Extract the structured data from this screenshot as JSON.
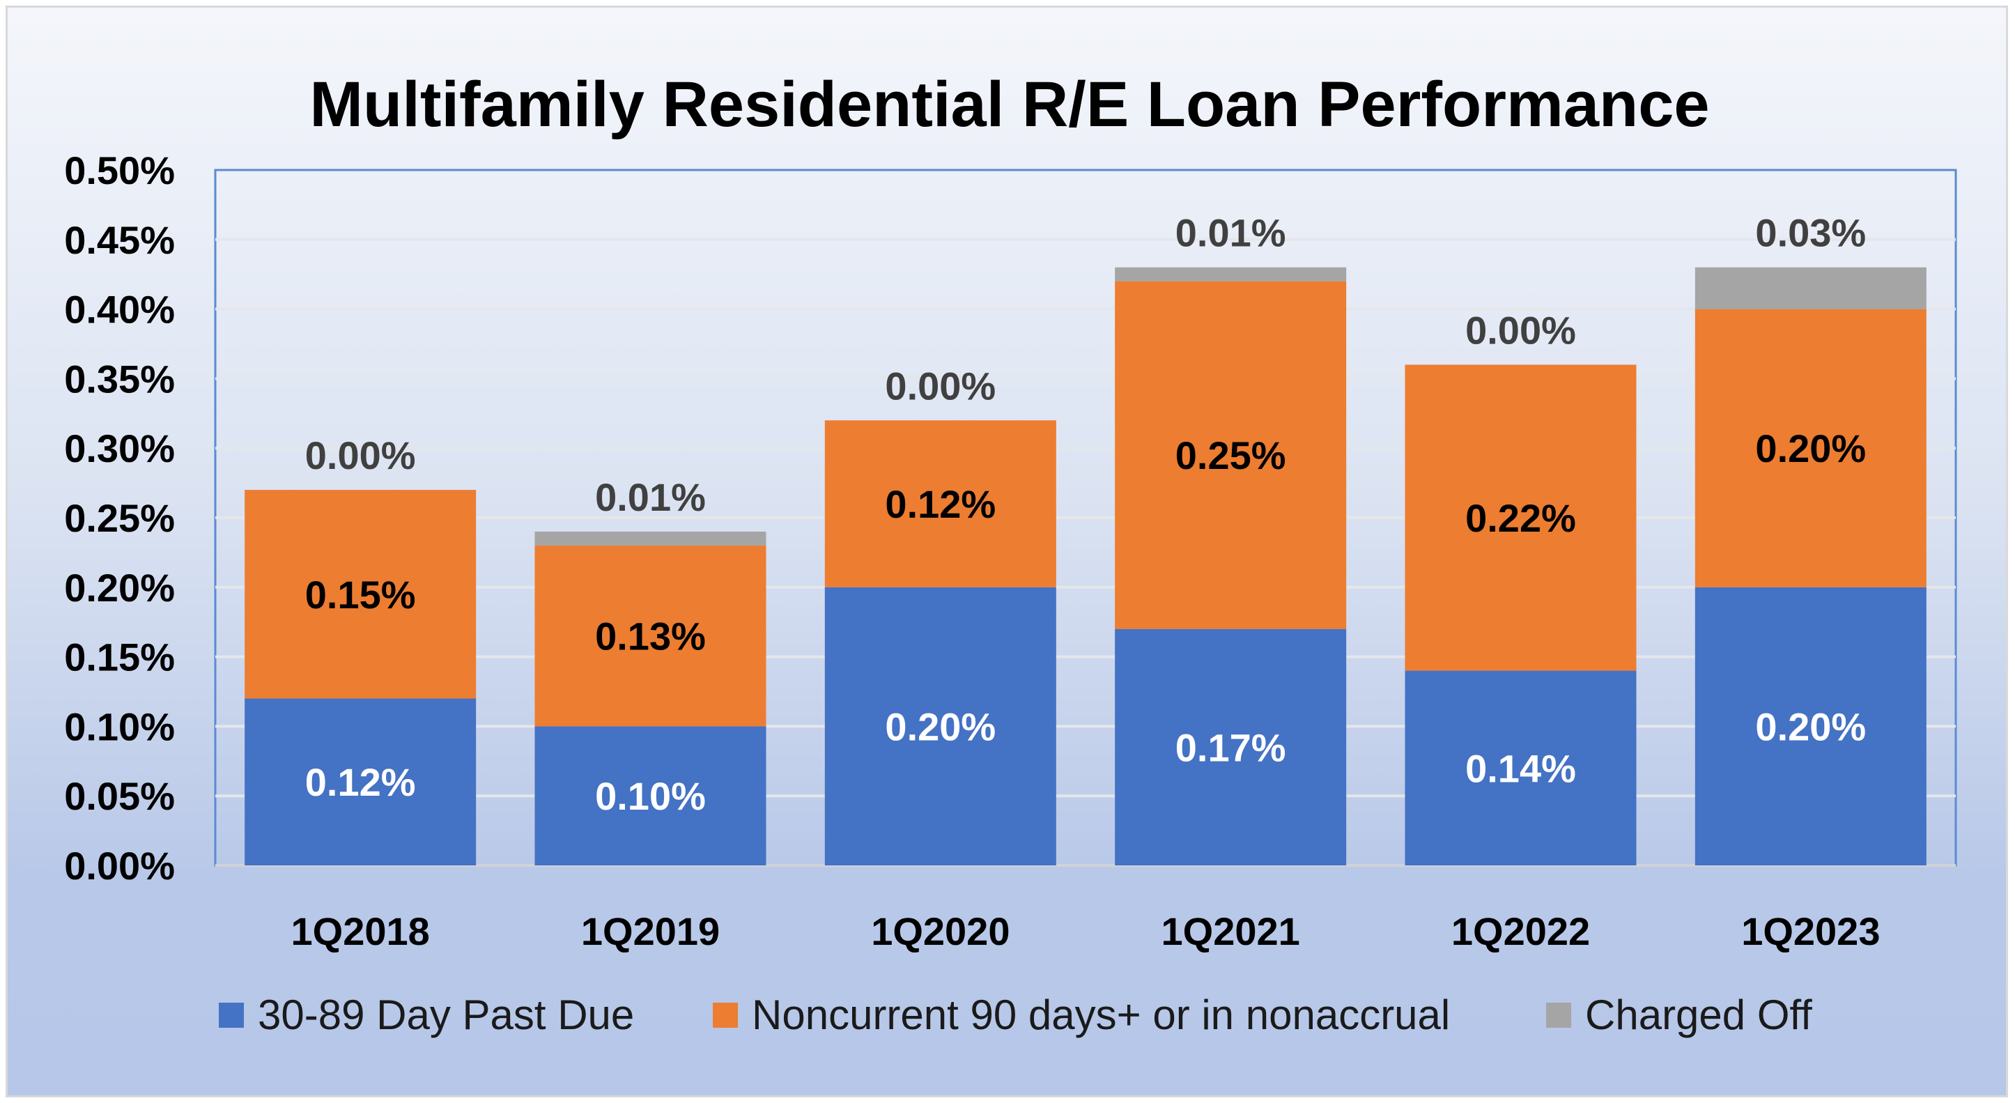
{
  "chart_data": {
    "type": "bar",
    "stacked": true,
    "title": "Multifamily Residential R/E Loan Performance",
    "categories": [
      "1Q2018",
      "1Q2019",
      "1Q2020",
      "1Q2021",
      "1Q2022",
      "1Q2023"
    ],
    "series": [
      {
        "name": "30-89 Day Past Due",
        "color": "#4472c4",
        "label_color": "#ffffff",
        "values": [
          0.12,
          0.1,
          0.2,
          0.17,
          0.14,
          0.2
        ],
        "labels": [
          "0.12%",
          "0.10%",
          "0.20%",
          "0.17%",
          "0.14%",
          "0.20%"
        ]
      },
      {
        "name": "Noncurrent 90 days+ or in nonaccrual",
        "color": "#ed7d31",
        "label_color": "#000000",
        "values": [
          0.15,
          0.13,
          0.12,
          0.25,
          0.22,
          0.2
        ],
        "labels": [
          "0.15%",
          "0.13%",
          "0.12%",
          "0.25%",
          "0.22%",
          "0.20%"
        ]
      },
      {
        "name": "Charged Off",
        "color": "#a5a5a5",
        "label_color": "#404040",
        "values": [
          0.0,
          0.01,
          0.0,
          0.01,
          0.0,
          0.03
        ],
        "labels": [
          "0.00%",
          "0.01%",
          "0.00%",
          "0.01%",
          "0.00%",
          "0.03%"
        ]
      }
    ],
    "ylim": [
      0,
      0.5
    ],
    "yticks": [
      0,
      0.05,
      0.1,
      0.15,
      0.2,
      0.25,
      0.3,
      0.35,
      0.4,
      0.45,
      0.5
    ],
    "ytick_labels": [
      "0.00%",
      "0.05%",
      "0.10%",
      "0.15%",
      "0.20%",
      "0.25%",
      "0.30%",
      "0.35%",
      "0.40%",
      "0.45%",
      "0.50%"
    ],
    "grid": true,
    "legend_position": "bottom"
  }
}
